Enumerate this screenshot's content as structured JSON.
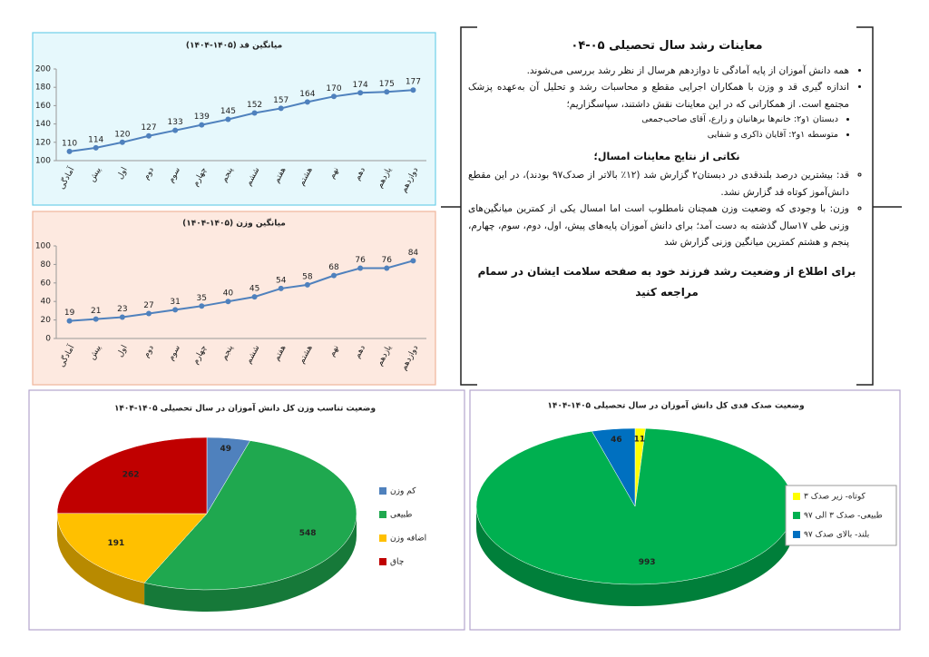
{
  "chart_data": [
    {
      "type": "line",
      "title": "میانگین قد (۱۴۰۵-۱۴۰۴)",
      "categories": [
        "آمادگی",
        "پیش",
        "اول",
        "دوم",
        "سوم",
        "چهارم",
        "پنجم",
        "ششم",
        "هفتم",
        "هشتم",
        "نهم",
        "دهم",
        "یازدهم",
        "دوازدهم"
      ],
      "values": [
        110,
        114,
        120,
        127,
        133,
        139,
        145,
        152,
        157,
        164,
        170,
        174,
        175,
        177
      ],
      "color": "#4f81bd",
      "ylim": [
        100,
        200
      ],
      "yticks": [
        100,
        120,
        140,
        160,
        180,
        200
      ],
      "grid": false
    },
    {
      "type": "line",
      "title": "میانگین وزن (۱۴۰۵-۱۴۰۴)",
      "categories": [
        "آمادگی",
        "پیش",
        "اول",
        "دوم",
        "سوم",
        "چهارم",
        "پنجم",
        "ششم",
        "هفتم",
        "هشتم",
        "نهم",
        "دهم",
        "یازدهم",
        "دوازدهم"
      ],
      "values": [
        19,
        21,
        23,
        27,
        31,
        35,
        40,
        45,
        54,
        58,
        68,
        76,
        76,
        84
      ],
      "color": "#4f81bd",
      "ylim": [
        0,
        100
      ],
      "yticks": [
        0,
        20,
        40,
        60,
        80,
        100
      ],
      "grid": false
    },
    {
      "type": "pie",
      "title": "وضعیت تناسب وزن کل دانش آموزان در سال تحصیلی ۱۴۰۵-۱۴۰۴",
      "categories": [
        "کم وزن",
        "طبیعی",
        "اضافه وزن",
        "چاق"
      ],
      "values": [
        49,
        548,
        191,
        262
      ],
      "colors": [
        "#4f81bd",
        "#1fa84f",
        "#ffc000",
        "#c00000"
      ],
      "legend": "right"
    },
    {
      "type": "pie",
      "title": "وضعیت صدک قدی کل دانش آموزان در سال تحصیلی ۱۴۰۵-۱۴۰۴",
      "categories": [
        "کوتاه- زیر صدک ۳",
        "طبیعی- صدک ۳ الی ۹۷",
        "بلند- بالای صدک ۹۷"
      ],
      "values": [
        11,
        993,
        46
      ],
      "colors": [
        "#ffff00",
        "#00b050",
        "#0070c0"
      ],
      "legend": "right"
    }
  ],
  "text_panel": {
    "title": "معاینات رشد سال تحصیلی ۰۵-۰۴",
    "bullets": [
      "همه دانش آموزان از پایه آمادگی تا دوازدهم هرسال از نظر رشد بررسی می‌شوند.",
      "اندازه گیری قد و وزن با همکاران اجرایی مقطع و محاسبات رشد و تحلیل آن به‌عهده پزشک مجتمع است. از همکارانی که در این معاینات نقش داشتند، سپاسگزاریم؛"
    ],
    "sub_bullets": [
      "دبستان ۱و۲: خانم‌ها برهانیان و زارع، آقای صاحب‌جمعی",
      "متوسطه ۱و۲: آقایان ذاکری و شفایی"
    ],
    "notes_title": "نکاتی از نتایج معاینات امسال؛",
    "notes": [
      "قد: بیشترین درصد بلندقدی در دبستان۲ گزارش شد (۱۲٪ بالاتر از صدک۹۷ بودند)، در این مقطع دانش‌آموز کوتاه قد گزارش نشد.",
      "وزن: با وجودی که وضعیت وزن همچنان نامطلوب است اما امسال یکی از کمترین میانگین‌های وزنی طی ۱۷سال گذشته به دست آمد؛ برای دانش آموزان پایه‌های پیش، اول، دوم، سوم، چهارم، پنجم و هشتم کمترین میانگین وزنی گزارش شد"
    ],
    "footer": "برای اطلاع از وضعیت رشد فرزند خود به صفحه سلامت ایشان در سمام مراجعه کنید"
  }
}
